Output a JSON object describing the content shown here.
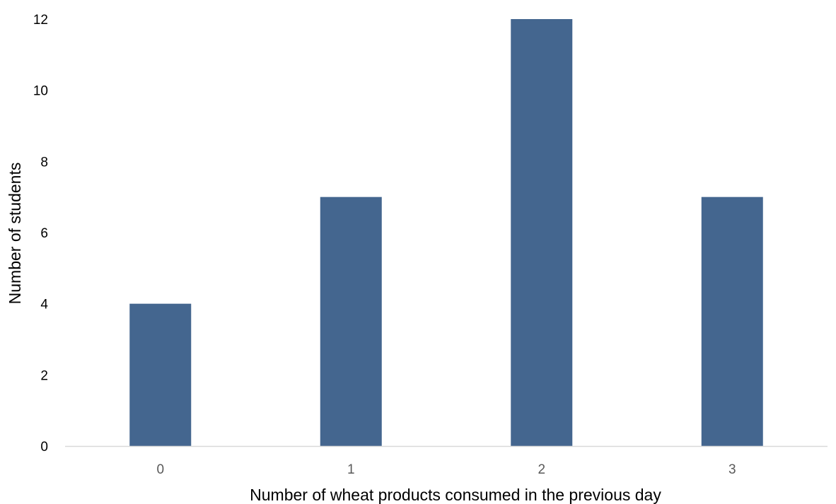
{
  "chart_data": {
    "type": "bar",
    "title": "",
    "categories": [
      "0",
      "1",
      "2",
      "3"
    ],
    "values": [
      4,
      7,
      12,
      7
    ],
    "xlabel": "Number of wheat products consumed in the previous day",
    "ylabel": "Number of students",
    "ylim": [
      0,
      12
    ],
    "yticks": [
      0,
      2,
      4,
      6,
      8,
      10,
      12
    ],
    "grid": false,
    "legend": "none",
    "colors": {
      "bar": "#44668F",
      "axis_line": "#D9D9D9",
      "x_tick_text": "#595959",
      "y_tick_text": "#000000",
      "axis_title_text": "#000000"
    }
  }
}
